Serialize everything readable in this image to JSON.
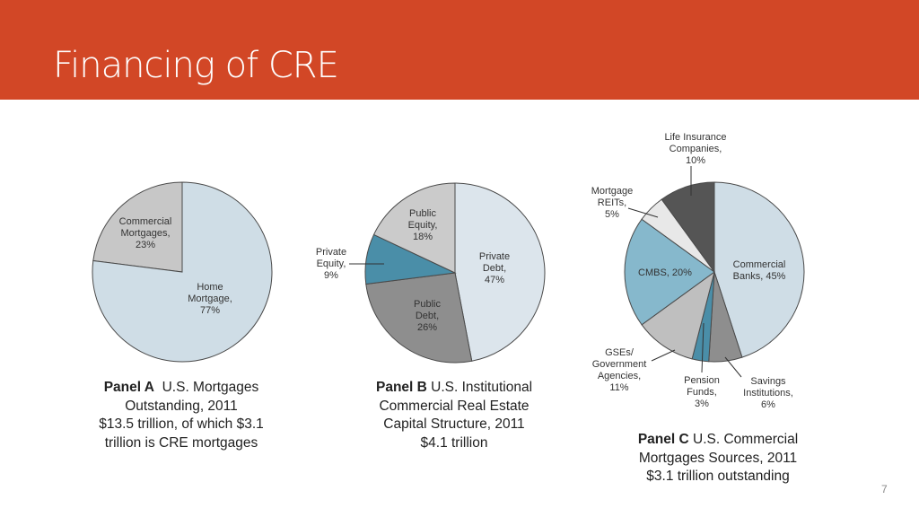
{
  "slide": {
    "title": "Financing of CRE",
    "page_number": "7"
  },
  "captions": {
    "a": {
      "panel": "Panel A",
      "line1": "U.S. Mortgages",
      "line2": "Outstanding, 2011",
      "line3": "$13.5 trillion, of which $3.1",
      "line4": "trillion is CRE mortgages"
    },
    "b": {
      "panel": "Panel B",
      "line1": "U.S. Institutional",
      "line2": "Commercial Real Estate",
      "line3": "Capital Structure, 2011",
      "line4": "$4.1 trillion"
    },
    "c": {
      "panel": "Panel C",
      "line1": "U.S. Commercial",
      "line2": "Mortgages Sources, 2011",
      "line3": "$3.1 trillion outstanding"
    }
  },
  "chart_data": [
    {
      "type": "pie",
      "panel": "A",
      "labels": [
        [
          "Commercial",
          "Mortgages,",
          "23%"
        ],
        [
          "Home",
          "Mortgage,",
          "77%"
        ]
      ],
      "values": [
        23,
        77
      ],
      "colors": [
        "#c7c7c7",
        "#cfdde6"
      ]
    },
    {
      "type": "pie",
      "panel": "B",
      "labels": [
        [
          "Private",
          "Debt,",
          "47%"
        ],
        [
          "Public",
          "Debt,",
          "26%"
        ],
        [
          "Private",
          "Equity,",
          "9%"
        ],
        [
          "Public",
          "Equity,",
          "18%"
        ]
      ],
      "values": [
        47,
        26,
        9,
        18
      ],
      "colors": [
        "#dce5ec",
        "#8e8e8e",
        "#4a8ea8",
        "#cbcbcb"
      ]
    },
    {
      "type": "pie",
      "panel": "C",
      "labels": [
        [
          "Commercial",
          "Banks, 45%"
        ],
        [
          "Savings",
          "Institutions,",
          "6%"
        ],
        [
          "Pension",
          "Funds,",
          "3%"
        ],
        [
          "GSEs/",
          "Government",
          "Agencies,",
          "11%"
        ],
        [
          "CMBS, 20%"
        ],
        [
          "Mortgage",
          "REITs,",
          "5%"
        ],
        [
          "Life Insurance",
          "Companies,",
          "10%"
        ]
      ],
      "values": [
        45,
        6,
        3,
        11,
        20,
        5,
        10
      ],
      "colors": [
        "#cfdde6",
        "#8e8e8e",
        "#4a8ea8",
        "#bfbfbf",
        "#86b8cc",
        "#e8e8e8",
        "#555555"
      ]
    }
  ]
}
